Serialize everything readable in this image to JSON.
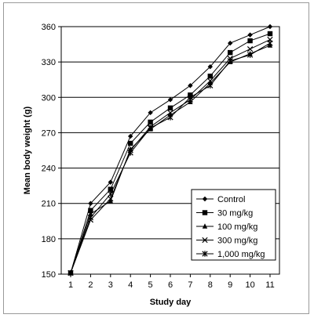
{
  "chart_data": {
    "type": "line",
    "title": "",
    "xlabel": "Study day",
    "ylabel": "Mean body weight (g)",
    "x": [
      1,
      2,
      3,
      4,
      5,
      6,
      7,
      8,
      9,
      10,
      11
    ],
    "xlim": [
      1,
      11
    ],
    "ylim": [
      150,
      360
    ],
    "yticks": [
      150,
      180,
      210,
      240,
      270,
      300,
      330,
      360
    ],
    "xticks": [
      1,
      2,
      3,
      4,
      5,
      6,
      7,
      8,
      9,
      10,
      11
    ],
    "grid": "horizontal",
    "legend_position": "bottom-right",
    "series": [
      {
        "name": "Control",
        "marker": "diamond",
        "values": [
          151,
          210,
          228,
          267,
          287,
          298,
          310,
          326,
          346,
          353,
          360
        ]
      },
      {
        "name": "30 mg/kg",
        "marker": "square",
        "values": [
          151,
          204,
          222,
          261,
          279,
          291,
          302,
          318,
          338,
          348,
          354
        ]
      },
      {
        "name": "100 mg/kg",
        "marker": "triangle",
        "values": [
          151,
          201,
          212,
          256,
          273,
          285,
          296,
          312,
          330,
          337,
          344
        ]
      },
      {
        "name": "300 mg/kg",
        "marker": "x",
        "values": [
          151,
          196,
          214,
          255,
          275,
          287,
          298,
          314,
          333,
          341,
          349
        ]
      },
      {
        "name": "1,000 mg/kg",
        "marker": "star",
        "values": [
          151,
          198,
          218,
          253,
          274,
          283,
          300,
          310,
          331,
          336,
          346
        ]
      }
    ]
  }
}
